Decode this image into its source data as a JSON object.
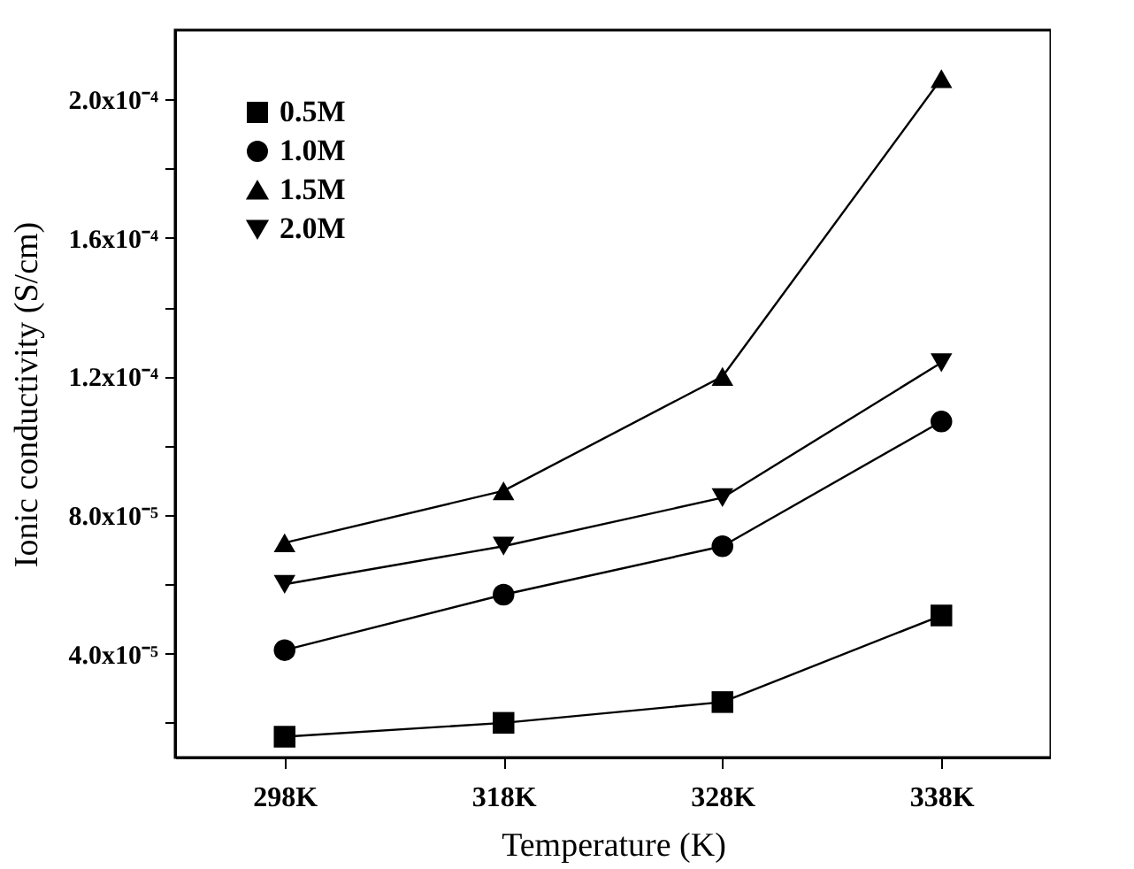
{
  "chart_data": {
    "type": "line",
    "xlabel": "Temperature (K)",
    "ylabel": "Ionic conductivity (S/cm)",
    "categories": [
      "298K",
      "318K",
      "328K",
      "338K"
    ],
    "series": [
      {
        "name": "0.5M",
        "color": "#000000",
        "marker": "square",
        "values": [
          1.6e-05,
          2e-05,
          2.6e-05,
          5.1e-05
        ]
      },
      {
        "name": "1.0M",
        "color": "#000000",
        "marker": "circle",
        "values": [
          4.1e-05,
          5.7e-05,
          7.1e-05,
          0.000107
        ]
      },
      {
        "name": "1.5M",
        "color": "#000000",
        "marker": "triangle",
        "values": [
          7.2e-05,
          8.7e-05,
          0.00012,
          0.000206
        ]
      },
      {
        "name": "2.0M",
        "color": "#000000",
        "marker": "triangle-down",
        "values": [
          6e-05,
          7.1e-05,
          8.5e-05,
          0.000124
        ]
      }
    ],
    "ylim": [
      1e-05,
      0.00022
    ],
    "yticks": [
      {
        "value": 2e-05,
        "label": null
      },
      {
        "value": 4e-05,
        "label": "4.0x10⁻⁵"
      },
      {
        "value": 6e-05,
        "label": null
      },
      {
        "value": 8e-05,
        "label": "8.0x10⁻⁵"
      },
      {
        "value": 0.0001,
        "label": null
      },
      {
        "value": 0.00012,
        "label": "1.2x10⁻⁴"
      },
      {
        "value": 0.00014,
        "label": null
      },
      {
        "value": 0.00016,
        "label": "1.6x10⁻⁴"
      },
      {
        "value": 0.00018,
        "label": null
      },
      {
        "value": 0.0002,
        "label": "2.0x10⁻⁴"
      }
    ],
    "grid": false,
    "legend": "top left",
    "line_style": "solid"
  }
}
